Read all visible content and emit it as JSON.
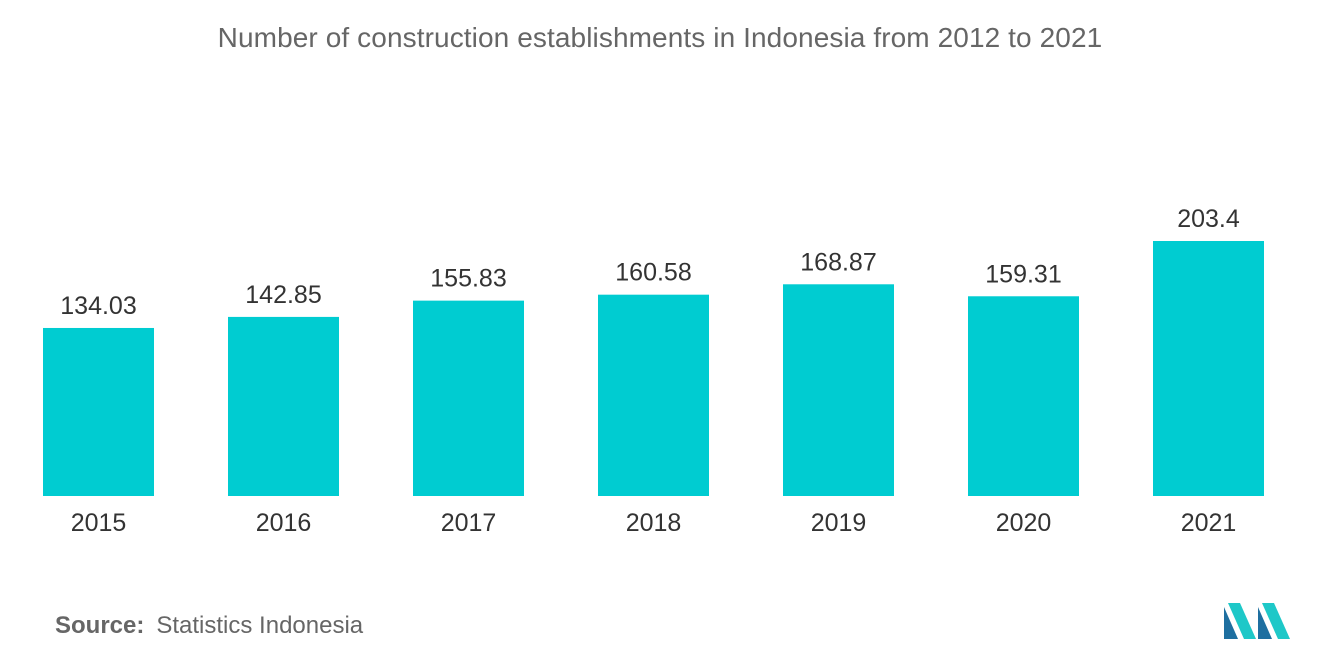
{
  "title": "Number of construction establishments in Indonesia from 2012 to 2021",
  "source": {
    "label": "Source:",
    "text": "Statistics Indonesia"
  },
  "logo": {
    "icon": "mordor-intelligence-logo-icon",
    "colors": [
      "#1ec8c8",
      "#1e6fa0"
    ]
  },
  "colors": {
    "bar": "#00ccd1",
    "text": "#333333",
    "title": "#666666"
  },
  "chart_data": {
    "type": "bar",
    "title": "Number of construction establishments in Indonesia from 2012 to 2021",
    "categories": [
      "2015",
      "2016",
      "2017",
      "2018",
      "2019",
      "2020",
      "2021"
    ],
    "values": [
      134.03,
      142.85,
      155.83,
      160.58,
      168.87,
      159.31,
      203.4
    ],
    "value_labels": [
      "134.03",
      "142.85",
      "155.83",
      "160.58",
      "168.87",
      "159.31",
      "203.4"
    ],
    "xlabel": "",
    "ylabel": "",
    "ylim": [
      0,
      203.4
    ],
    "grid": false,
    "legend": "none"
  }
}
